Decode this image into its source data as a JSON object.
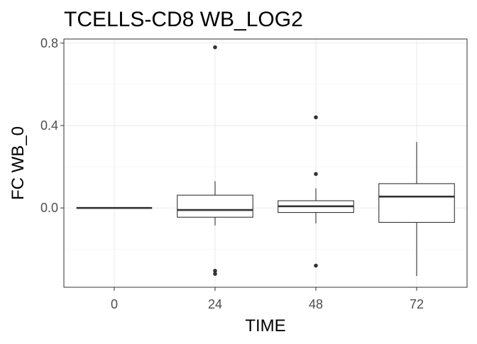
{
  "chart_data": {
    "type": "boxplot",
    "title": "TCELLS-CD8 WB_LOG2",
    "xlabel": "TIME",
    "ylabel": "FC WB_0",
    "categories": [
      "0",
      "24",
      "48",
      "72"
    ],
    "ylim": [
      -0.385,
      0.82
    ],
    "yticks": [
      0.0,
      0.4,
      0.8
    ],
    "yticks_labels": [
      "0.0",
      "0.4",
      "0.8"
    ],
    "yminor": [
      -0.2,
      0.2,
      0.6
    ],
    "grid": true,
    "legend": "none",
    "boxes": [
      {
        "category": "0",
        "min": 0.0,
        "q1": 0.0,
        "median": 0.0,
        "q3": 0.0,
        "max": 0.0,
        "outliers": []
      },
      {
        "category": "24",
        "min": -0.085,
        "q1": -0.045,
        "median": -0.01,
        "q3": 0.062,
        "max": 0.13,
        "outliers": [
          0.78,
          -0.305,
          -0.32
        ]
      },
      {
        "category": "48",
        "min": -0.075,
        "q1": -0.022,
        "median": 0.008,
        "q3": 0.035,
        "max": 0.095,
        "outliers": [
          0.44,
          0.165,
          -0.28
        ]
      },
      {
        "category": "72",
        "min": -0.33,
        "q1": -0.07,
        "median": 0.055,
        "q3": 0.118,
        "max": 0.32,
        "outliers": []
      }
    ]
  }
}
